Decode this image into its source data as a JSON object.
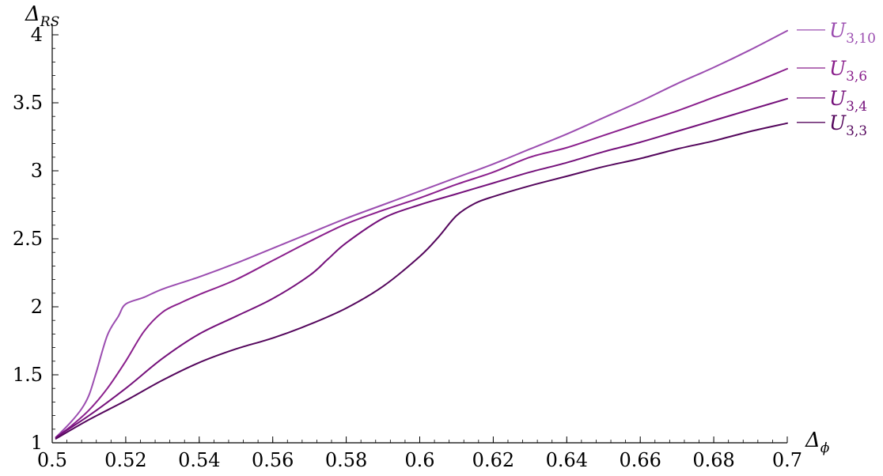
{
  "chart_data": {
    "type": "line",
    "xlabel": "Δ",
    "xlabel_sub": "ϕ",
    "ylabel": "Δ",
    "ylabel_sub": "RS",
    "xlim": [
      0.5,
      0.7
    ],
    "ylim": [
      1,
      4
    ],
    "x_ticks": [
      0.5,
      0.52,
      0.54,
      0.56,
      0.58,
      0.6,
      0.62,
      0.64,
      0.66,
      0.68,
      0.7
    ],
    "x_tick_labels": [
      "0.5",
      "0.52",
      "0.54",
      "0.56",
      "0.58",
      "0.6",
      "0.62",
      "0.64",
      "0.66",
      "0.68",
      "0.7"
    ],
    "y_ticks": [
      1,
      1.5,
      2,
      2.5,
      3,
      3.5,
      4
    ],
    "y_tick_labels": [
      "1",
      "1.5",
      "2",
      "2.5",
      "3",
      "3.5",
      "4"
    ],
    "grid": false,
    "legend_placement": "right, inline at line ends",
    "series": [
      {
        "name": "U",
        "name_sub": "3,10",
        "color": "#9b4db0",
        "x": [
          0.501,
          0.505,
          0.508,
          0.51,
          0.512,
          0.515,
          0.518,
          0.52,
          0.525,
          0.53,
          0.54,
          0.55,
          0.56,
          0.57,
          0.58,
          0.59,
          0.6,
          0.61,
          0.62,
          0.63,
          0.64,
          0.65,
          0.66,
          0.67,
          0.68,
          0.69,
          0.7
        ],
        "y": [
          1.04,
          1.15,
          1.25,
          1.35,
          1.52,
          1.79,
          1.93,
          2.02,
          2.07,
          2.13,
          2.22,
          2.32,
          2.43,
          2.54,
          2.65,
          2.75,
          2.85,
          2.95,
          3.05,
          3.16,
          3.27,
          3.39,
          3.51,
          3.64,
          3.76,
          3.89,
          4.03
        ]
      },
      {
        "name": "U",
        "name_sub": "3,6",
        "color": "#8a1f8c",
        "x": [
          0.501,
          0.505,
          0.51,
          0.515,
          0.52,
          0.525,
          0.53,
          0.535,
          0.54,
          0.55,
          0.56,
          0.57,
          0.58,
          0.59,
          0.6,
          0.61,
          0.62,
          0.63,
          0.64,
          0.65,
          0.66,
          0.67,
          0.68,
          0.69,
          0.7
        ],
        "y": [
          1.04,
          1.12,
          1.24,
          1.4,
          1.6,
          1.82,
          1.96,
          2.03,
          2.09,
          2.2,
          2.34,
          2.48,
          2.61,
          2.71,
          2.8,
          2.9,
          2.99,
          3.1,
          3.17,
          3.26,
          3.35,
          3.44,
          3.54,
          3.64,
          3.75
        ]
      },
      {
        "name": "U",
        "name_sub": "3,4",
        "color": "#74107a",
        "x": [
          0.501,
          0.51,
          0.52,
          0.53,
          0.54,
          0.55,
          0.56,
          0.57,
          0.575,
          0.58,
          0.59,
          0.6,
          0.61,
          0.62,
          0.63,
          0.64,
          0.65,
          0.66,
          0.67,
          0.68,
          0.69,
          0.7
        ],
        "y": [
          1.04,
          1.2,
          1.4,
          1.62,
          1.8,
          1.93,
          2.06,
          2.23,
          2.35,
          2.47,
          2.65,
          2.75,
          2.83,
          2.91,
          2.99,
          3.06,
          3.14,
          3.21,
          3.29,
          3.37,
          3.45,
          3.53
        ]
      },
      {
        "name": "U",
        "name_sub": "3,3",
        "color": "#54065c",
        "x": [
          0.501,
          0.51,
          0.52,
          0.53,
          0.54,
          0.55,
          0.56,
          0.57,
          0.58,
          0.59,
          0.6,
          0.605,
          0.61,
          0.615,
          0.62,
          0.63,
          0.64,
          0.65,
          0.66,
          0.67,
          0.68,
          0.69,
          0.7
        ],
        "y": [
          1.03,
          1.17,
          1.31,
          1.46,
          1.59,
          1.69,
          1.77,
          1.87,
          1.99,
          2.15,
          2.37,
          2.51,
          2.67,
          2.76,
          2.81,
          2.89,
          2.96,
          3.03,
          3.09,
          3.16,
          3.22,
          3.29,
          3.35
        ]
      }
    ]
  }
}
